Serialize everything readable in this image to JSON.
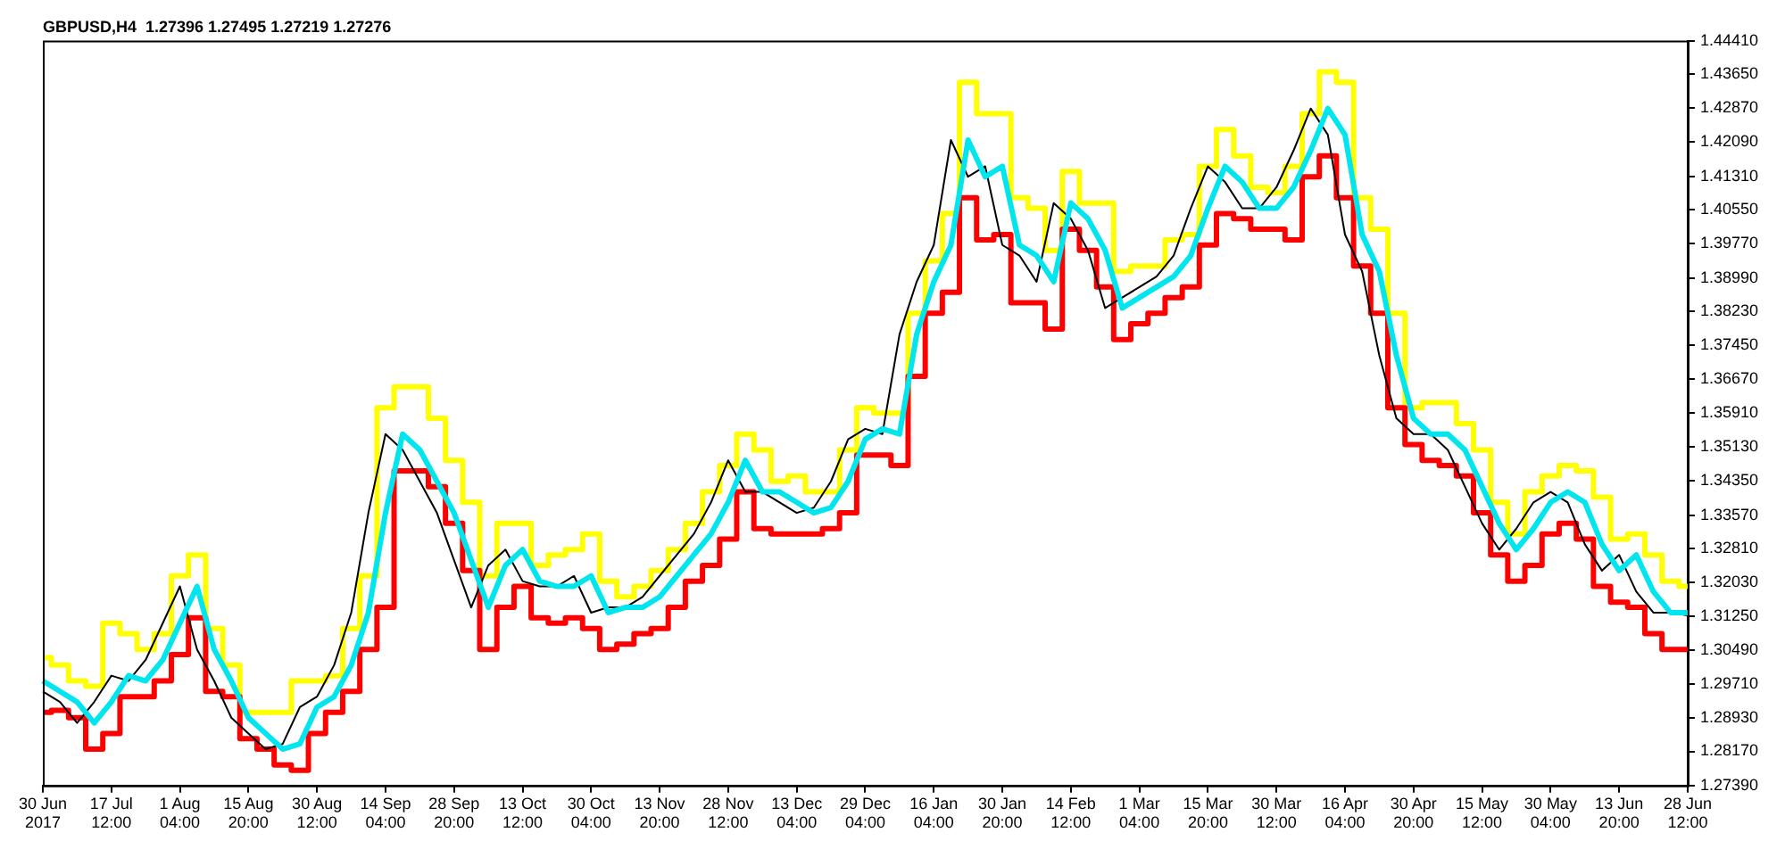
{
  "chart_data": {
    "type": "line",
    "title": "GBPUSD,H4  1.27396 1.27495 1.27219 1.27276",
    "categories": [
      "30 Jun 2017",
      null,
      null,
      null,
      "17 Jul 12:00",
      null,
      null,
      null,
      "1 Aug 04:00",
      null,
      null,
      null,
      "15 Aug 20:00",
      null,
      null,
      null,
      "30 Aug 12:00",
      null,
      null,
      null,
      "14 Sep 04:00",
      null,
      null,
      null,
      "28 Sep 20:00",
      null,
      null,
      null,
      "13 Oct 12:00",
      null,
      null,
      null,
      "30 Oct 04:00",
      null,
      null,
      null,
      "13 Nov 20:00",
      null,
      null,
      null,
      "28 Nov 12:00",
      null,
      null,
      null,
      "13 Dec 04:00",
      null,
      null,
      null,
      "29 Dec 04:00",
      null,
      null,
      null,
      "16 Jan 04:00",
      null,
      null,
      null,
      "30 Jan 20:00",
      null,
      null,
      null,
      "14 Feb 12:00",
      null,
      null,
      null,
      "1 Mar 04:00",
      null,
      null,
      null,
      "15 Mar 20:00",
      null,
      null,
      null,
      "30 Mar 12:00",
      null,
      null,
      null,
      "16 Apr 04:00",
      null,
      null,
      null,
      "30 Apr 20:00",
      null,
      null,
      null,
      "15 May 12:00",
      null,
      null,
      null,
      "30 May 04:00",
      null,
      null,
      null,
      "13 Jun 20:00",
      null,
      null,
      null,
      "28 Jun 12:00"
    ],
    "series": [
      {
        "type": "step",
        "color": "#ffff00",
        "values": [
          1.3031,
          1.3014,
          1.2978,
          1.2966,
          1.311,
          1.3086,
          1.305,
          1.3086,
          1.3218,
          1.3266,
          1.3098,
          1.3014,
          1.2906,
          1.2906,
          1.2906,
          1.2978,
          1.2978,
          1.299,
          1.3098,
          1.3218,
          1.3602,
          1.365,
          1.365,
          1.3578,
          1.3482,
          1.3386,
          1.3218,
          1.3338,
          1.3338,
          1.3242,
          1.3266,
          1.3278,
          1.3314,
          1.3206,
          1.317,
          1.3194,
          1.323,
          1.3278,
          1.3338,
          1.341,
          1.347,
          1.3542,
          1.3506,
          1.3434,
          1.3446,
          1.341,
          1.341,
          1.3506,
          1.3602,
          1.359,
          1.359,
          1.3818,
          1.3938,
          1.4046,
          1.4346,
          1.4274,
          1.4274,
          1.4082,
          1.4058,
          1.3962,
          1.4142,
          1.407,
          1.407,
          1.3914,
          1.3926,
          1.3926,
          1.3986,
          1.3998,
          1.4154,
          1.4238,
          1.4178,
          1.4106,
          1.4094,
          1.4154,
          1.4274,
          1.437,
          1.4346,
          1.4082,
          1.401,
          1.3818,
          1.3602,
          1.3614,
          1.3614,
          1.3566,
          1.3506,
          1.3386,
          1.3314,
          1.341,
          1.3446,
          1.347,
          1.3458,
          1.3398,
          1.3302,
          1.3314,
          1.3266,
          1.3206,
          1.3194
        ]
      },
      {
        "type": "step",
        "color": "#ff0000",
        "values": [
          1.2906,
          1.2911,
          1.2894,
          1.2822,
          1.2858,
          1.2942,
          1.2942,
          1.2978,
          1.3038,
          1.3122,
          1.2954,
          1.2942,
          1.2846,
          1.2822,
          1.2786,
          1.2774,
          1.2858,
          1.2906,
          1.2954,
          1.305,
          1.3146,
          1.3458,
          1.3458,
          1.3422,
          1.3338,
          1.323,
          1.305,
          1.3146,
          1.3194,
          1.3122,
          1.311,
          1.3122,
          1.3098,
          1.305,
          1.3062,
          1.3086,
          1.3098,
          1.3146,
          1.3206,
          1.3242,
          1.3302,
          1.341,
          1.3326,
          1.3314,
          1.3314,
          1.3314,
          1.3326,
          1.3362,
          1.3494,
          1.3494,
          1.347,
          1.3674,
          1.3818,
          1.3866,
          1.4082,
          1.3986,
          1.3998,
          1.3842,
          1.3842,
          1.3782,
          1.401,
          1.3962,
          1.3878,
          1.3758,
          1.3794,
          1.3818,
          1.3854,
          1.3878,
          1.3974,
          1.4046,
          1.4034,
          1.401,
          1.401,
          1.3986,
          1.413,
          1.4178,
          1.4082,
          1.3926,
          1.3818,
          1.3602,
          1.3518,
          1.3482,
          1.347,
          1.3446,
          1.3362,
          1.3266,
          1.3206,
          1.3242,
          1.3314,
          1.3338,
          1.3302,
          1.3194,
          1.3158,
          1.3146,
          1.3086,
          1.305,
          1.305
        ]
      },
      {
        "type": "line",
        "color": "#000000",
        "values": [
          1.2954,
          1.293,
          1.2882,
          1.293,
          1.299,
          1.2978,
          1.3026,
          1.311,
          1.3194,
          1.305,
          1.2978,
          1.2894,
          1.2858,
          1.2822,
          1.2834,
          1.2918,
          1.2942,
          1.3014,
          1.3134,
          1.3362,
          1.3542,
          1.3506,
          1.3434,
          1.3362,
          1.3254,
          1.3146,
          1.3242,
          1.3278,
          1.3206,
          1.3194,
          1.3194,
          1.3218,
          1.3134,
          1.3146,
          1.3146,
          1.317,
          1.3218,
          1.3266,
          1.3314,
          1.3386,
          1.3482,
          1.341,
          1.341,
          1.3386,
          1.3362,
          1.3374,
          1.3434,
          1.353,
          1.3554,
          1.3542,
          1.377,
          1.389,
          1.3974,
          1.4214,
          1.413,
          1.4154,
          1.3974,
          1.395,
          1.389,
          1.407,
          1.4034,
          1.3962,
          1.383,
          1.3854,
          1.3878,
          1.3902,
          1.395,
          1.4058,
          1.4154,
          1.4118,
          1.4058,
          1.4058,
          1.4106,
          1.419,
          1.4286,
          1.4226,
          1.3998,
          1.3914,
          1.3722,
          1.3578,
          1.3542,
          1.3542,
          1.3506,
          1.3422,
          1.3338,
          1.3278,
          1.3326,
          1.3386,
          1.341,
          1.3386,
          1.329,
          1.323,
          1.3266,
          1.3182,
          1.3134,
          1.3134,
          1.3128
        ]
      },
      {
        "type": "line",
        "color": "#00e5ee",
        "values": [
          1.2978,
          1.2954,
          1.293,
          1.2882,
          1.293,
          1.299,
          1.2978,
          1.3026,
          1.311,
          1.3194,
          1.305,
          1.2978,
          1.2894,
          1.2858,
          1.2822,
          1.2834,
          1.2918,
          1.2942,
          1.3014,
          1.3134,
          1.3362,
          1.3542,
          1.3506,
          1.3434,
          1.3362,
          1.3254,
          1.3146,
          1.3242,
          1.3278,
          1.3206,
          1.3194,
          1.3194,
          1.3218,
          1.3134,
          1.3146,
          1.3146,
          1.317,
          1.3218,
          1.3266,
          1.3314,
          1.3386,
          1.3482,
          1.341,
          1.341,
          1.3386,
          1.3362,
          1.3374,
          1.3434,
          1.353,
          1.3554,
          1.3542,
          1.377,
          1.389,
          1.3974,
          1.4214,
          1.413,
          1.4154,
          1.3974,
          1.395,
          1.389,
          1.407,
          1.4034,
          1.3962,
          1.383,
          1.3854,
          1.3878,
          1.3902,
          1.395,
          1.4058,
          1.4154,
          1.4118,
          1.4058,
          1.4058,
          1.4106,
          1.419,
          1.4286,
          1.4226,
          1.3998,
          1.3914,
          1.3722,
          1.3578,
          1.3542,
          1.3542,
          1.3506,
          1.3422,
          1.3338,
          1.3278,
          1.3326,
          1.3386,
          1.341,
          1.3386,
          1.329,
          1.323,
          1.3266,
          1.3182,
          1.3134,
          1.3134
        ]
      }
    ],
    "ylim": [
      1.2739,
      1.4441
    ],
    "yticks": [
      {
        "value": 1.2739,
        "label": "1.27390"
      },
      {
        "value": 1.2817,
        "label": "1.28170"
      },
      {
        "value": 1.2893,
        "label": "1.28930"
      },
      {
        "value": 1.2971,
        "label": "1.29710"
      },
      {
        "value": 1.3049,
        "label": "1.30490"
      },
      {
        "value": 1.3125,
        "label": "1.31250"
      },
      {
        "value": 1.3203,
        "label": "1.32030"
      },
      {
        "value": 1.3281,
        "label": "1.32810"
      },
      {
        "value": 1.3357,
        "label": "1.33570"
      },
      {
        "value": 1.3435,
        "label": "1.34350"
      },
      {
        "value": 1.3513,
        "label": "1.35130"
      },
      {
        "value": 1.3591,
        "label": "1.35910"
      },
      {
        "value": 1.3667,
        "label": "1.36670"
      },
      {
        "value": 1.3745,
        "label": "1.37450"
      },
      {
        "value": 1.3823,
        "label": "1.38230"
      },
      {
        "value": 1.3899,
        "label": "1.38990"
      },
      {
        "value": 1.3977,
        "label": "1.39770"
      },
      {
        "value": 1.4055,
        "label": "1.40550"
      },
      {
        "value": 1.4131,
        "label": "1.41310"
      },
      {
        "value": 1.4209,
        "label": "1.42090"
      },
      {
        "value": 1.4287,
        "label": "1.42870"
      },
      {
        "value": 1.4365,
        "label": "1.43650"
      },
      {
        "value": 1.4441,
        "label": "1.44410"
      }
    ],
    "grid": false,
    "legend": false
  }
}
